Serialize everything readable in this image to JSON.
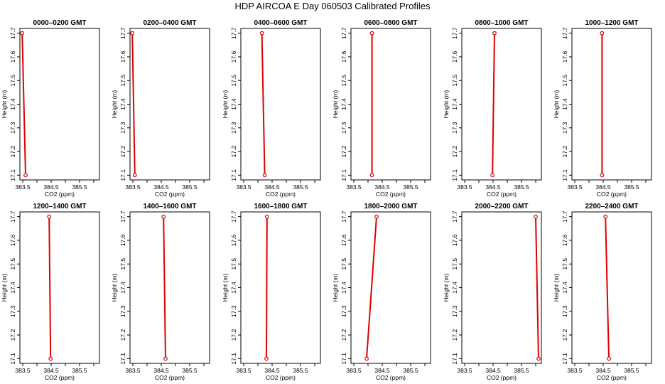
{
  "page_title": "HDP AIRCOA E  Day 060503  Calibrated Profiles",
  "chart_data": {
    "type": "line",
    "title": "HDP AIRCOA E  Day 060503  Calibrated Profiles",
    "xlabel": "CO2 (ppm)",
    "ylabel": "Height (m)",
    "xlim": [
      383.4,
      386.2
    ],
    "ylim": [
      17.08,
      17.72
    ],
    "x_ticks": [
      383.5,
      384,
      384.5,
      385,
      385.5,
      386
    ],
    "x_tick_labels": [
      "383.5",
      "",
      "384.5",
      "",
      "385.5",
      ""
    ],
    "y_ticks": [
      17.1,
      17.2,
      17.3,
      17.4,
      17.5,
      17.6,
      17.7
    ],
    "y_tick_labels": [
      "17.1",
      "17.2",
      "17.3",
      "17.4",
      "17.5",
      "17.6",
      "17.7"
    ],
    "line_color": "#e00000",
    "panels": [
      {
        "title": "0000–0200 GMT",
        "points": [
          {
            "x": 383.6,
            "y": 17.1
          },
          {
            "x": 383.48,
            "y": 17.7
          }
        ]
      },
      {
        "title": "0200–0400 GMT",
        "points": [
          {
            "x": 383.57,
            "y": 17.1
          },
          {
            "x": 383.48,
            "y": 17.7
          }
        ]
      },
      {
        "title": "0400–0600 GMT",
        "points": [
          {
            "x": 384.24,
            "y": 17.1
          },
          {
            "x": 384.14,
            "y": 17.7
          }
        ]
      },
      {
        "title": "0600–0800 GMT",
        "points": [
          {
            "x": 384.14,
            "y": 17.1
          },
          {
            "x": 384.14,
            "y": 17.7
          }
        ]
      },
      {
        "title": "0800–1000 GMT",
        "points": [
          {
            "x": 384.48,
            "y": 17.1
          },
          {
            "x": 384.55,
            "y": 17.7
          }
        ]
      },
      {
        "title": "1000–1200 GMT",
        "points": [
          {
            "x": 384.46,
            "y": 17.1
          },
          {
            "x": 384.46,
            "y": 17.7
          }
        ]
      },
      {
        "title": "1200–1400 GMT",
        "points": [
          {
            "x": 384.48,
            "y": 17.1
          },
          {
            "x": 384.43,
            "y": 17.7
          }
        ]
      },
      {
        "title": "1400–1600 GMT",
        "points": [
          {
            "x": 384.65,
            "y": 17.1
          },
          {
            "x": 384.58,
            "y": 17.7
          }
        ]
      },
      {
        "title": "1600–1800 GMT",
        "points": [
          {
            "x": 384.3,
            "y": 17.1
          },
          {
            "x": 384.32,
            "y": 17.7
          }
        ]
      },
      {
        "title": "1800–2000 GMT",
        "points": [
          {
            "x": 383.95,
            "y": 17.1
          },
          {
            "x": 384.3,
            "y": 17.7
          }
        ]
      },
      {
        "title": "2000–2200 GMT",
        "points": [
          {
            "x": 386.1,
            "y": 17.1
          },
          {
            "x": 386.0,
            "y": 17.7
          }
        ]
      },
      {
        "title": "2200–2400 GMT",
        "points": [
          {
            "x": 384.7,
            "y": 17.1
          },
          {
            "x": 384.58,
            "y": 17.7
          }
        ]
      }
    ]
  }
}
